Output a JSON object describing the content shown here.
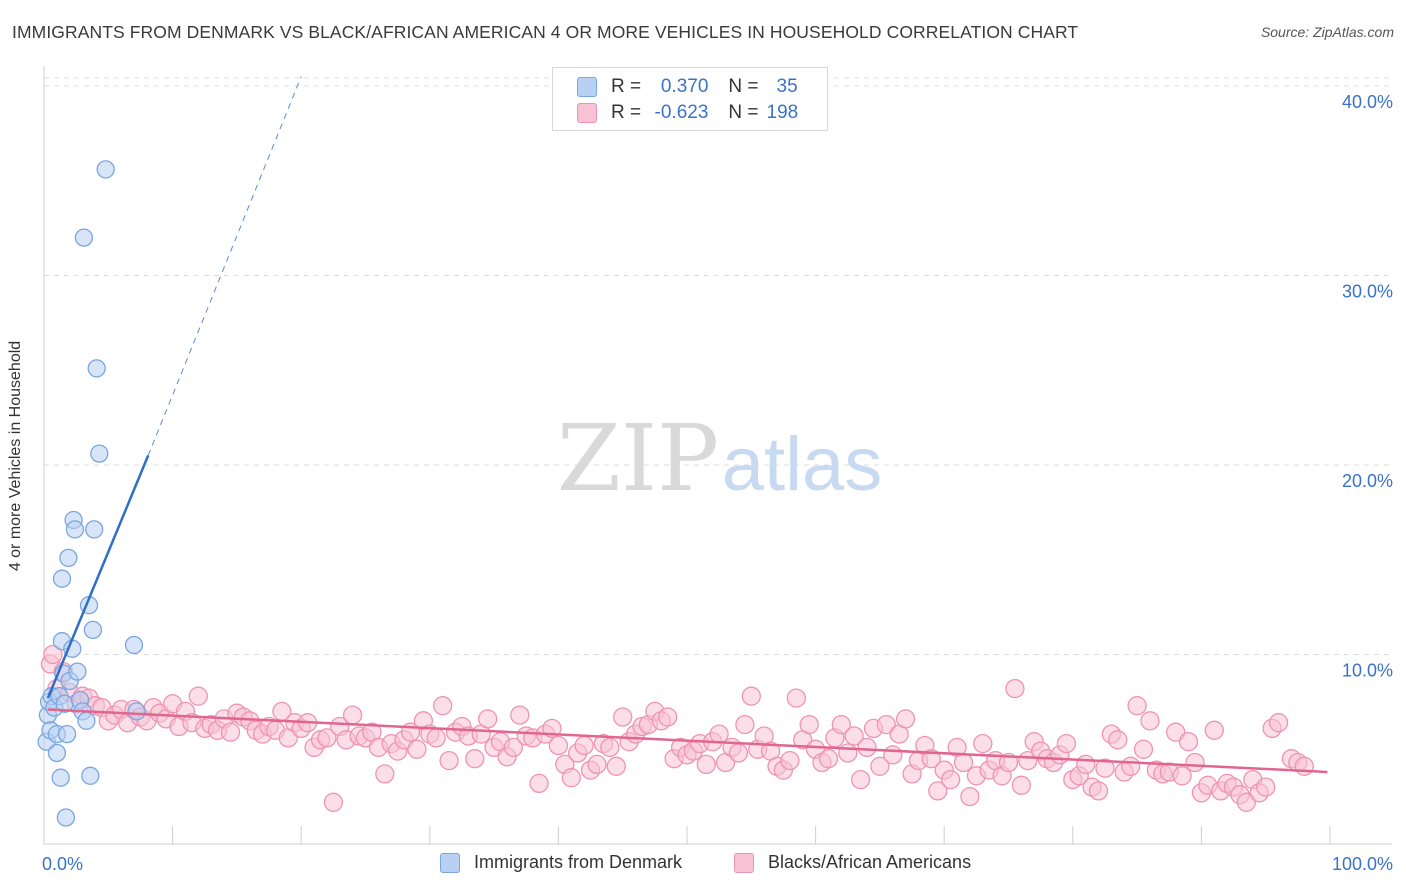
{
  "header": {
    "title": "IMMIGRANTS FROM DENMARK VS BLACK/AFRICAN AMERICAN 4 OR MORE VEHICLES IN HOUSEHOLD CORRELATION CHART",
    "source": "Source: ZipAtlas.com"
  },
  "watermark": {
    "zip": "ZIP",
    "atlas": "atlas"
  },
  "legend_top": {
    "r_label": "R =",
    "n_label": "N =",
    "rows": [
      {
        "r": "0.370",
        "n": "35"
      },
      {
        "r": "-0.623",
        "n": "198"
      }
    ]
  },
  "colors": {
    "blue_fill": "#b8d0f2",
    "blue_stroke": "#7aa6e0",
    "blue_line": "#2f6fca",
    "pink_fill": "#f7c2d3",
    "pink_stroke": "#ee94b1",
    "pink_line": "#e0668f",
    "grid": "#dcdcdc",
    "tick_label": "#3a72c9"
  },
  "chart_data": {
    "type": "scatter",
    "title": "IMMIGRANTS FROM DENMARK VS BLACK/AFRICAN AMERICAN 4 OR MORE VEHICLES IN HOUSEHOLD CORRELATION CHART",
    "xlabel": "",
    "ylabel": "4 or more Vehicles in Household",
    "xlim": [
      0,
      100
    ],
    "ylim": [
      0,
      42
    ],
    "x_tick_labels": [
      "0.0%",
      "100.0%"
    ],
    "y_ticks": [
      10,
      20,
      30,
      40
    ],
    "y_tick_labels": [
      "10.0%",
      "20.0%",
      "30.0%",
      "40.0%"
    ],
    "series": [
      {
        "name": "Immigrants from Denmark",
        "r": 0.37,
        "n": 35,
        "points": [
          [
            0.2,
            5.4
          ],
          [
            0.3,
            6.8
          ],
          [
            0.4,
            7.5
          ],
          [
            0.5,
            6.0
          ],
          [
            0.6,
            7.8
          ],
          [
            0.8,
            7.2
          ],
          [
            1.0,
            5.8
          ],
          [
            1.0,
            4.8
          ],
          [
            1.2,
            7.8
          ],
          [
            1.3,
            3.5
          ],
          [
            1.4,
            10.7
          ],
          [
            1.5,
            9.0
          ],
          [
            1.6,
            7.4
          ],
          [
            1.4,
            14.0
          ],
          [
            1.7,
            1.4
          ],
          [
            1.8,
            5.8
          ],
          [
            1.9,
            15.1
          ],
          [
            2.0,
            8.6
          ],
          [
            2.2,
            10.3
          ],
          [
            2.3,
            17.1
          ],
          [
            2.4,
            16.6
          ],
          [
            2.6,
            9.1
          ],
          [
            2.8,
            7.6
          ],
          [
            3.0,
            7.0
          ],
          [
            3.1,
            32.0
          ],
          [
            3.3,
            6.5
          ],
          [
            3.5,
            12.6
          ],
          [
            3.6,
            3.6
          ],
          [
            3.8,
            11.3
          ],
          [
            3.9,
            16.6
          ],
          [
            4.1,
            25.1
          ],
          [
            4.3,
            20.6
          ],
          [
            4.8,
            35.6
          ],
          [
            7.0,
            10.5
          ],
          [
            7.2,
            7.0
          ]
        ],
        "trend": {
          "solid": [
            [
              0.3,
              7.7
            ],
            [
              8.1,
              20.5
            ]
          ],
          "dashed": [
            [
              8.1,
              20.5
            ],
            [
              20.0,
              40.5
            ]
          ]
        }
      },
      {
        "name": "Blacks/African Americans",
        "r": -0.623,
        "n": 198,
        "points": [
          [
            0.5,
            9.5
          ],
          [
            0.7,
            10.0
          ],
          [
            1.0,
            8.2
          ],
          [
            1.5,
            9.1
          ],
          [
            2.0,
            8.0
          ],
          [
            2.5,
            7.4
          ],
          [
            3.0,
            7.8
          ],
          [
            3.5,
            7.7
          ],
          [
            4.0,
            7.3
          ],
          [
            4.5,
            7.2
          ],
          [
            5.0,
            6.5
          ],
          [
            5.5,
            6.8
          ],
          [
            6.0,
            7.1
          ],
          [
            6.5,
            6.4
          ],
          [
            7.0,
            7.1
          ],
          [
            7.5,
            6.7
          ],
          [
            8.0,
            6.5
          ],
          [
            8.5,
            7.2
          ],
          [
            9.0,
            6.9
          ],
          [
            9.5,
            6.6
          ],
          [
            10.0,
            7.4
          ],
          [
            10.5,
            6.2
          ],
          [
            11.0,
            7.0
          ],
          [
            11.5,
            6.4
          ],
          [
            12.0,
            7.8
          ],
          [
            12.5,
            6.1
          ],
          [
            13.0,
            6.3
          ],
          [
            13.5,
            6.0
          ],
          [
            14.0,
            6.6
          ],
          [
            14.5,
            5.9
          ],
          [
            15.0,
            6.9
          ],
          [
            15.5,
            6.7
          ],
          [
            16.0,
            6.5
          ],
          [
            16.5,
            6.0
          ],
          [
            17.0,
            5.8
          ],
          [
            17.5,
            6.2
          ],
          [
            18.0,
            6.0
          ],
          [
            18.5,
            7.0
          ],
          [
            19.0,
            5.6
          ],
          [
            19.5,
            6.4
          ],
          [
            20.0,
            6.1
          ],
          [
            20.5,
            6.4
          ],
          [
            21.0,
            5.1
          ],
          [
            21.5,
            5.5
          ],
          [
            22.0,
            5.6
          ],
          [
            22.5,
            2.2
          ],
          [
            23.0,
            6.2
          ],
          [
            23.5,
            5.5
          ],
          [
            24.0,
            6.8
          ],
          [
            24.5,
            5.7
          ],
          [
            25.0,
            5.6
          ],
          [
            25.5,
            5.9
          ],
          [
            26.0,
            5.1
          ],
          [
            26.5,
            3.7
          ],
          [
            27.0,
            5.3
          ],
          [
            27.5,
            4.9
          ],
          [
            28.0,
            5.5
          ],
          [
            28.5,
            5.9
          ],
          [
            29.0,
            5.0
          ],
          [
            29.5,
            6.5
          ],
          [
            30.0,
            5.8
          ],
          [
            30.5,
            5.6
          ],
          [
            31.0,
            7.3
          ],
          [
            31.5,
            4.4
          ],
          [
            32.0,
            5.9
          ],
          [
            32.5,
            6.2
          ],
          [
            33.0,
            5.7
          ],
          [
            33.5,
            4.5
          ],
          [
            34.0,
            5.8
          ],
          [
            34.5,
            6.6
          ],
          [
            35.0,
            5.1
          ],
          [
            35.5,
            5.4
          ],
          [
            36.0,
            4.6
          ],
          [
            36.5,
            5.1
          ],
          [
            37.0,
            6.8
          ],
          [
            37.5,
            5.7
          ],
          [
            38.0,
            5.6
          ],
          [
            38.5,
            3.2
          ],
          [
            39.0,
            5.8
          ],
          [
            39.5,
            6.1
          ],
          [
            40.0,
            5.2
          ],
          [
            40.5,
            4.2
          ],
          [
            41.0,
            3.5
          ],
          [
            41.5,
            4.8
          ],
          [
            42.0,
            5.2
          ],
          [
            42.5,
            3.9
          ],
          [
            43.0,
            4.2
          ],
          [
            43.5,
            5.3
          ],
          [
            44.0,
            5.1
          ],
          [
            44.5,
            4.1
          ],
          [
            45.0,
            6.7
          ],
          [
            45.5,
            5.4
          ],
          [
            46.0,
            5.8
          ],
          [
            46.5,
            6.2
          ],
          [
            47.0,
            6.3
          ],
          [
            47.5,
            7.0
          ],
          [
            48.0,
            6.5
          ],
          [
            48.5,
            6.7
          ],
          [
            49.0,
            4.5
          ],
          [
            49.5,
            5.1
          ],
          [
            50.0,
            4.7
          ],
          [
            50.5,
            4.9
          ],
          [
            51.0,
            5.3
          ],
          [
            51.5,
            4.2
          ],
          [
            52.0,
            5.4
          ],
          [
            52.5,
            5.8
          ],
          [
            53.0,
            4.3
          ],
          [
            53.5,
            5.1
          ],
          [
            54.0,
            4.8
          ],
          [
            54.5,
            6.3
          ],
          [
            55.0,
            7.8
          ],
          [
            55.5,
            5.0
          ],
          [
            56.0,
            5.7
          ],
          [
            56.5,
            4.9
          ],
          [
            57.0,
            4.1
          ],
          [
            57.5,
            3.9
          ],
          [
            58.0,
            4.4
          ],
          [
            58.5,
            7.7
          ],
          [
            59.0,
            5.5
          ],
          [
            59.5,
            6.3
          ],
          [
            60.0,
            5.0
          ],
          [
            60.5,
            4.3
          ],
          [
            61.0,
            4.5
          ],
          [
            61.5,
            5.6
          ],
          [
            62.0,
            6.3
          ],
          [
            62.5,
            4.8
          ],
          [
            63.0,
            5.7
          ],
          [
            63.5,
            3.4
          ],
          [
            64.0,
            5.1
          ],
          [
            64.5,
            6.1
          ],
          [
            65.0,
            4.1
          ],
          [
            65.5,
            6.3
          ],
          [
            66.0,
            4.7
          ],
          [
            66.5,
            5.8
          ],
          [
            67.0,
            6.6
          ],
          [
            67.5,
            3.7
          ],
          [
            68.0,
            4.4
          ],
          [
            68.5,
            5.2
          ],
          [
            69.0,
            4.5
          ],
          [
            69.5,
            2.8
          ],
          [
            70.0,
            3.9
          ],
          [
            70.5,
            3.4
          ],
          [
            71.0,
            5.1
          ],
          [
            71.5,
            4.3
          ],
          [
            72.0,
            2.5
          ],
          [
            72.5,
            3.6
          ],
          [
            73.0,
            5.3
          ],
          [
            73.5,
            3.9
          ],
          [
            74.0,
            4.4
          ],
          [
            74.5,
            3.6
          ],
          [
            75.0,
            4.3
          ],
          [
            75.5,
            8.2
          ],
          [
            76.0,
            3.1
          ],
          [
            76.5,
            4.4
          ],
          [
            77.0,
            5.4
          ],
          [
            77.5,
            4.9
          ],
          [
            78.0,
            4.5
          ],
          [
            78.5,
            4.3
          ],
          [
            79.0,
            4.7
          ],
          [
            79.5,
            5.3
          ],
          [
            80.0,
            3.4
          ],
          [
            80.5,
            3.6
          ],
          [
            81.0,
            4.2
          ],
          [
            81.5,
            3.0
          ],
          [
            82.0,
            2.8
          ],
          [
            82.5,
            4.0
          ],
          [
            83.0,
            5.8
          ],
          [
            83.5,
            5.5
          ],
          [
            84.0,
            3.8
          ],
          [
            84.5,
            4.1
          ],
          [
            85.0,
            7.3
          ],
          [
            85.5,
            5.0
          ],
          [
            86.0,
            6.5
          ],
          [
            86.5,
            3.9
          ],
          [
            87.0,
            3.7
          ],
          [
            87.5,
            3.8
          ],
          [
            88.0,
            5.9
          ],
          [
            88.5,
            3.6
          ],
          [
            89.0,
            5.4
          ],
          [
            89.5,
            4.3
          ],
          [
            90.0,
            2.7
          ],
          [
            90.5,
            3.1
          ],
          [
            91.0,
            6.0
          ],
          [
            91.5,
            2.8
          ],
          [
            92.0,
            3.2
          ],
          [
            92.5,
            3.0
          ],
          [
            93.0,
            2.6
          ],
          [
            93.5,
            2.2
          ],
          [
            94.0,
            3.4
          ],
          [
            94.5,
            2.7
          ],
          [
            95.0,
            3.0
          ],
          [
            95.5,
            6.1
          ],
          [
            96.0,
            6.4
          ],
          [
            97.0,
            4.5
          ],
          [
            97.5,
            4.3
          ],
          [
            98.0,
            4.1
          ]
        ],
        "trend": {
          "solid": [
            [
              0.3,
              7.1
            ],
            [
              99.8,
              3.8
            ]
          ]
        }
      }
    ]
  },
  "legend_bottom": {
    "items": [
      {
        "label": "Immigrants from Denmark"
      },
      {
        "label": "Blacks/African Americans"
      }
    ]
  }
}
